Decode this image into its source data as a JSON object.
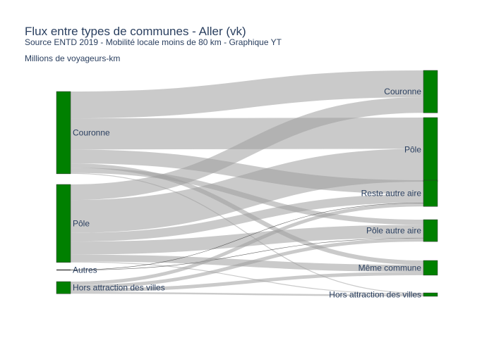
{
  "chart_data": {
    "type": "sankey",
    "title": "Flux entre types de communes - Aller (vk)",
    "subtitle": "Source ENTD 2019 - Mobilité locale moins de 80 km - Graphique YT",
    "annotation": "Millions de voyageurs-km",
    "node_color": "#008000",
    "link_color": "#bdbdbd",
    "sources": [
      "Couronne",
      "Pôle",
      "Autres",
      "Hors attraction des villes"
    ],
    "targets": [
      "Couronne",
      "Pôle",
      "Reste autre aire",
      "Pôle autre aire",
      "Même commune",
      "Hors attraction des villes"
    ],
    "links": [
      {
        "source": "Couronne",
        "target": "Couronne",
        "value": 31
      },
      {
        "source": "Couronne",
        "target": "Pôle",
        "value": 36
      },
      {
        "source": "Couronne",
        "target": "Reste autre aire",
        "value": 16
      },
      {
        "source": "Couronne",
        "target": "Même commune",
        "value": 5
      },
      {
        "source": "Couronne",
        "target": "Pôle autre aire",
        "value": 6
      },
      {
        "source": "Couronne",
        "target": "Hors attraction des villes",
        "value": 1
      },
      {
        "source": "Pôle",
        "target": "Couronne",
        "value": 18
      },
      {
        "source": "Pôle",
        "target": "Pôle",
        "value": 38
      },
      {
        "source": "Pôle",
        "target": "Reste autre aire",
        "value": 10
      },
      {
        "source": "Pôle",
        "target": "Pôle autre aire",
        "value": 15
      },
      {
        "source": "Pôle",
        "target": "Même commune",
        "value": 8
      },
      {
        "source": "Pôle",
        "target": "Hors attraction des villes",
        "value": 1
      },
      {
        "source": "Autres",
        "target": "Reste autre aire",
        "value": 0.3
      },
      {
        "source": "Autres",
        "target": "Pôle autre aire",
        "value": 0.3
      },
      {
        "source": "Hors attraction des villes",
        "target": "Reste autre aire",
        "value": 4
      },
      {
        "source": "Hors attraction des villes",
        "target": "Pôle autre aire",
        "value": 4
      },
      {
        "source": "Hors attraction des villes",
        "target": "Même commune",
        "value": 4
      },
      {
        "source": "Hors attraction des villes",
        "target": "Hors attraction des villes",
        "value": 2
      }
    ]
  }
}
